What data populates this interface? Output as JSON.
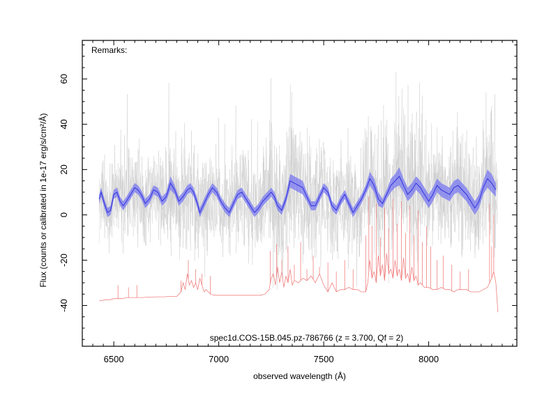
{
  "chart_data": {
    "type": "line",
    "title": "",
    "xlabel": "observed wavelength (Å)",
    "ylabel": "Flux (counts or calibrated in 1e-17 erg/s/cm²/Å)",
    "xlim": [
      6350,
      8420
    ],
    "ylim": [
      -58,
      77
    ],
    "x_ticks": [
      6500,
      7000,
      7500,
      8000
    ],
    "y_ticks": [
      -40,
      -20,
      0,
      20,
      40,
      60
    ],
    "annotations": {
      "remarks": "Remarks:",
      "caption": "spec1d.COS-15B.045.pz-786766 (z = 3.700, Qf = 2)"
    },
    "colors": {
      "raw_spectrum": "#c8c8c8",
      "smoothed_band": "#7878f0",
      "smoothed_line": "#3232dc",
      "sky_model": "#f08080"
    },
    "series": [
      {
        "kind": "smoothed",
        "x": [
          6430,
          6440,
          6455,
          6470,
          6485,
          6500,
          6515,
          6530,
          6545,
          6560,
          6580,
          6600,
          6615,
          6630,
          6650,
          6670,
          6690,
          6710,
          6730,
          6750,
          6770,
          6790,
          6810,
          6830,
          6850,
          6865,
          6880,
          6895,
          6910,
          6930,
          6950,
          6970,
          6990,
          7010,
          7030,
          7050,
          7070,
          7090,
          7110,
          7130,
          7150,
          7170,
          7190,
          7210,
          7230,
          7250,
          7265,
          7280,
          7300,
          7320,
          7340,
          7360,
          7380,
          7400,
          7420,
          7440,
          7460,
          7480,
          7500,
          7520,
          7540,
          7560,
          7580,
          7600,
          7620,
          7640,
          7660,
          7680,
          7700,
          7720,
          7740,
          7760,
          7780,
          7800,
          7820,
          7840,
          7860,
          7880,
          7900,
          7920,
          7940,
          7960,
          7980,
          8000,
          8020,
          8040,
          8060,
          8080,
          8100,
          8120,
          8140,
          8160,
          8180,
          8200,
          8220,
          8240,
          8260,
          8280,
          8300,
          8320
        ],
        "y": [
          7,
          10,
          5,
          1,
          2,
          9,
          10,
          6,
          4,
          6,
          9,
          12,
          11,
          9,
          5,
          7,
          11,
          10,
          6,
          8,
          14,
          11,
          6,
          8,
          11,
          12,
          10,
          6,
          1,
          5,
          9,
          12,
          10,
          6,
          3,
          1,
          5,
          9,
          10,
          7,
          4,
          1,
          3,
          6,
          8,
          10,
          8,
          4,
          2,
          7,
          15,
          14,
          13,
          12,
          8,
          4,
          4,
          8,
          12,
          10,
          4,
          2,
          6,
          9,
          5,
          1,
          4,
          7,
          11,
          16,
          13,
          7,
          5,
          9,
          13,
          15,
          17,
          13,
          9,
          11,
          14,
          12,
          9,
          6,
          9,
          13,
          11,
          10,
          9,
          12,
          13,
          11,
          9,
          6,
          3,
          6,
          12,
          16,
          14,
          11
        ],
        "band_halfwidth": [
          2,
          2,
          2,
          2,
          2,
          2,
          2,
          2,
          2,
          2,
          2,
          2,
          2,
          2,
          2,
          2,
          2,
          2,
          2,
          2,
          3,
          2,
          2,
          2,
          2,
          2,
          2,
          2,
          2,
          2,
          2,
          2,
          2,
          2,
          2,
          2,
          2,
          2,
          2,
          2,
          2,
          2,
          2,
          2,
          2,
          2,
          2,
          2,
          2,
          2,
          3,
          3,
          3,
          3,
          2,
          2,
          2,
          2,
          2,
          2,
          2,
          2,
          2,
          2,
          2,
          2,
          2,
          2,
          2,
          3,
          3,
          3,
          2,
          2,
          3,
          3,
          4,
          3,
          3,
          3,
          3,
          3,
          3,
          3,
          3,
          3,
          3,
          3,
          3,
          3,
          3,
          3,
          3,
          3,
          3,
          3,
          3,
          4,
          4,
          3
        ]
      },
      {
        "kind": "sky",
        "x": [
          6430,
          6460,
          6480,
          6500,
          6520,
          6540,
          6560,
          6580,
          6600,
          6620,
          6640,
          6660,
          6680,
          6700,
          6720,
          6740,
          6760,
          6780,
          6800,
          6820,
          6830,
          6840,
          6850,
          6860,
          6870,
          6880,
          6890,
          6900,
          6910,
          6920,
          6930,
          6940,
          6960,
          6980,
          7000,
          7020,
          7040,
          7060,
          7080,
          7100,
          7120,
          7140,
          7160,
          7180,
          7200,
          7220,
          7240,
          7250,
          7260,
          7270,
          7280,
          7290,
          7300,
          7310,
          7320,
          7330,
          7340,
          7350,
          7360,
          7380,
          7400,
          7420,
          7440,
          7460,
          7480,
          7500,
          7520,
          7540,
          7560,
          7580,
          7600,
          7620,
          7640,
          7660,
          7680,
          7700,
          7710,
          7720,
          7730,
          7740,
          7750,
          7760,
          7770,
          7780,
          7790,
          7800,
          7810,
          7820,
          7830,
          7840,
          7850,
          7860,
          7870,
          7880,
          7890,
          7900,
          7910,
          7920,
          7930,
          7940,
          7950,
          7960,
          7980,
          8000,
          8020,
          8040,
          8060,
          8080,
          8100,
          8120,
          8140,
          8160,
          8180,
          8200,
          8220,
          8240,
          8260,
          8280,
          8290,
          8300,
          8310,
          8320,
          8330
        ],
        "y": [
          -38,
          -37.5,
          -37.5,
          -37,
          -37,
          -37,
          -36.5,
          -36.5,
          -36.5,
          -36.5,
          -36.5,
          -36.3,
          -36.3,
          -36.2,
          -36.2,
          -36.2,
          -36,
          -36,
          -36,
          -34,
          -30,
          -33,
          -26,
          -31,
          -29,
          -32,
          -30,
          -33,
          -28,
          -31,
          -34,
          -33,
          -35,
          -35.5,
          -35.5,
          -35.5,
          -35.5,
          -35.5,
          -35.5,
          -35.5,
          -35.5,
          -35.5,
          -35.5,
          -35.5,
          -35.5,
          -35,
          -33,
          -28,
          -26,
          -31,
          -23,
          -30,
          -25,
          -32,
          -27,
          -30,
          -24,
          -31,
          -29,
          -30,
          -28,
          -29,
          -27,
          -30,
          -26,
          -31,
          -34,
          -30,
          -34,
          -33,
          -33,
          -32,
          -33,
          -33,
          -34,
          -34,
          -30,
          -20,
          -28,
          -25,
          -30,
          -18,
          -27,
          -22,
          -29,
          -17,
          -26,
          -24,
          -28,
          -20,
          -27,
          -24,
          -29,
          -19,
          -28,
          -26,
          -30,
          -23,
          -29,
          -27,
          -31,
          -30,
          -32,
          -32,
          -33,
          -33,
          -32,
          -33,
          -33,
          -34,
          -33,
          -33,
          -33,
          -34,
          -34,
          -34,
          -33,
          -32,
          -30,
          -28,
          -25,
          -30,
          -43
        ]
      }
    ],
    "sky_spikes": [
      {
        "x": 6520,
        "y": -31
      },
      {
        "x": 6570,
        "y": -32
      },
      {
        "x": 6610,
        "y": -31
      },
      {
        "x": 6820,
        "y": -29
      },
      {
        "x": 6855,
        "y": -20
      },
      {
        "x": 6890,
        "y": -24
      },
      {
        "x": 6920,
        "y": -26
      },
      {
        "x": 6960,
        "y": -27
      },
      {
        "x": 7245,
        "y": -16
      },
      {
        "x": 7275,
        "y": -13
      },
      {
        "x": 7300,
        "y": -20
      },
      {
        "x": 7330,
        "y": -14
      },
      {
        "x": 7360,
        "y": -22
      },
      {
        "x": 7390,
        "y": -12
      },
      {
        "x": 7420,
        "y": -24
      },
      {
        "x": 7450,
        "y": -18
      },
      {
        "x": 7480,
        "y": -23
      },
      {
        "x": 7520,
        "y": -21
      },
      {
        "x": 7560,
        "y": -25
      },
      {
        "x": 7600,
        "y": -20
      },
      {
        "x": 7640,
        "y": -24
      },
      {
        "x": 7700,
        "y": -9
      },
      {
        "x": 7715,
        "y": 8
      },
      {
        "x": 7730,
        "y": -5
      },
      {
        "x": 7750,
        "y": 5
      },
      {
        "x": 7770,
        "y": -10
      },
      {
        "x": 7790,
        "y": 3
      },
      {
        "x": 7810,
        "y": -6
      },
      {
        "x": 7830,
        "y": 7
      },
      {
        "x": 7850,
        "y": -4
      },
      {
        "x": 7870,
        "y": 6
      },
      {
        "x": 7890,
        "y": -8
      },
      {
        "x": 7910,
        "y": 4
      },
      {
        "x": 7930,
        "y": -9
      },
      {
        "x": 7950,
        "y": 2
      },
      {
        "x": 7970,
        "y": -12
      },
      {
        "x": 7990,
        "y": -5
      },
      {
        "x": 8010,
        "y": -14
      },
      {
        "x": 8040,
        "y": -20
      },
      {
        "x": 8070,
        "y": -18
      },
      {
        "x": 8110,
        "y": -22
      },
      {
        "x": 8150,
        "y": -25
      },
      {
        "x": 8190,
        "y": -24
      },
      {
        "x": 8290,
        "y": 5
      },
      {
        "x": 8300,
        "y": -14
      },
      {
        "x": 8310,
        "y": 0
      }
    ]
  }
}
